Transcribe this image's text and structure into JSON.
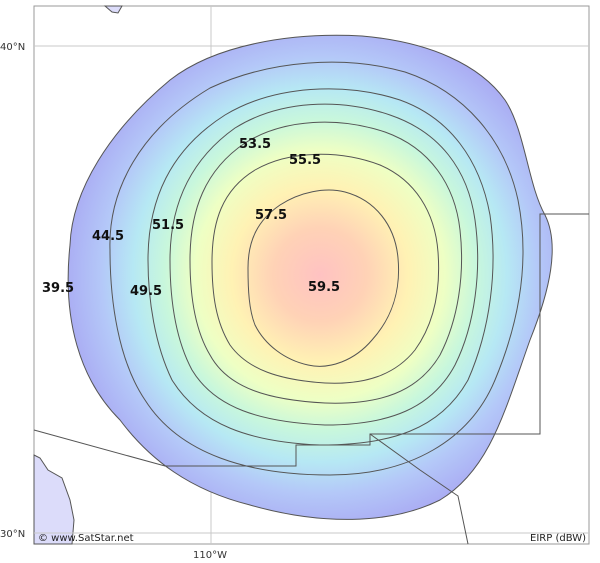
{
  "map": {
    "lat_labels": [
      "40°N",
      "30°N"
    ],
    "lon_labels": [
      "110°W"
    ],
    "credit": "© www.SatStar.net",
    "legend_unit": "EIRP (dBW)",
    "contour_labels": [
      "39.5",
      "44.5",
      "49.5",
      "51.5",
      "53.5",
      "55.5",
      "57.5",
      "59.5"
    ],
    "colors": {
      "outer_band": "#a9a9f3",
      "peak": "#ffc0c0",
      "contour_line": "#555555",
      "grid": "#c8c8c8",
      "land_outline": "#555555",
      "coast_fill": "#dcdcfa"
    }
  }
}
